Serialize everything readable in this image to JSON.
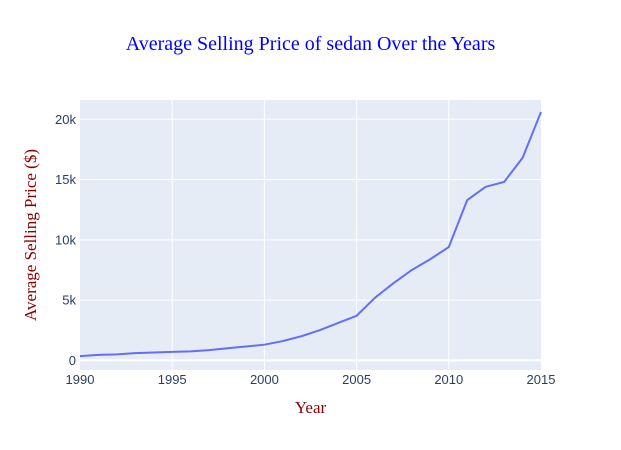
{
  "chart_data": {
    "type": "line",
    "title": "Average Selling Price of sedan Over the Years",
    "xlabel": "Year",
    "ylabel": "Average Selling Price ($)",
    "xlim": [
      1990,
      2015
    ],
    "ylim": [
      -800,
      21600
    ],
    "x_ticks": [
      1990,
      1995,
      2000,
      2005,
      2010,
      2015
    ],
    "x_tick_labels": [
      "1990",
      "1995",
      "2000",
      "2005",
      "2010",
      "2015"
    ],
    "y_ticks": [
      0,
      5000,
      10000,
      15000,
      20000
    ],
    "y_tick_labels": [
      "0",
      "5k",
      "10k",
      "15k",
      "20k"
    ],
    "grid": true,
    "colors": {
      "line": "#636efa",
      "plot_bg": "#e5ecf6",
      "title": "#0000ff",
      "axis_title": "#8b0000"
    },
    "series": [
      {
        "x": [
          1990,
          1991,
          1992,
          1993,
          1994,
          1995,
          1996,
          1997,
          1998,
          1999,
          2000,
          2001,
          2002,
          2003,
          2004,
          2005,
          2006,
          2007,
          2008,
          2009,
          2010,
          2011,
          2012,
          2013,
          2014,
          2015
        ],
        "y": [
          350,
          450,
          500,
          600,
          650,
          700,
          750,
          850,
          1000,
          1150,
          1300,
          1600,
          2000,
          2500,
          3100,
          3700,
          5200,
          6400,
          7500,
          8400,
          9400,
          13300,
          14400,
          14800,
          16800,
          20600
        ]
      }
    ]
  }
}
